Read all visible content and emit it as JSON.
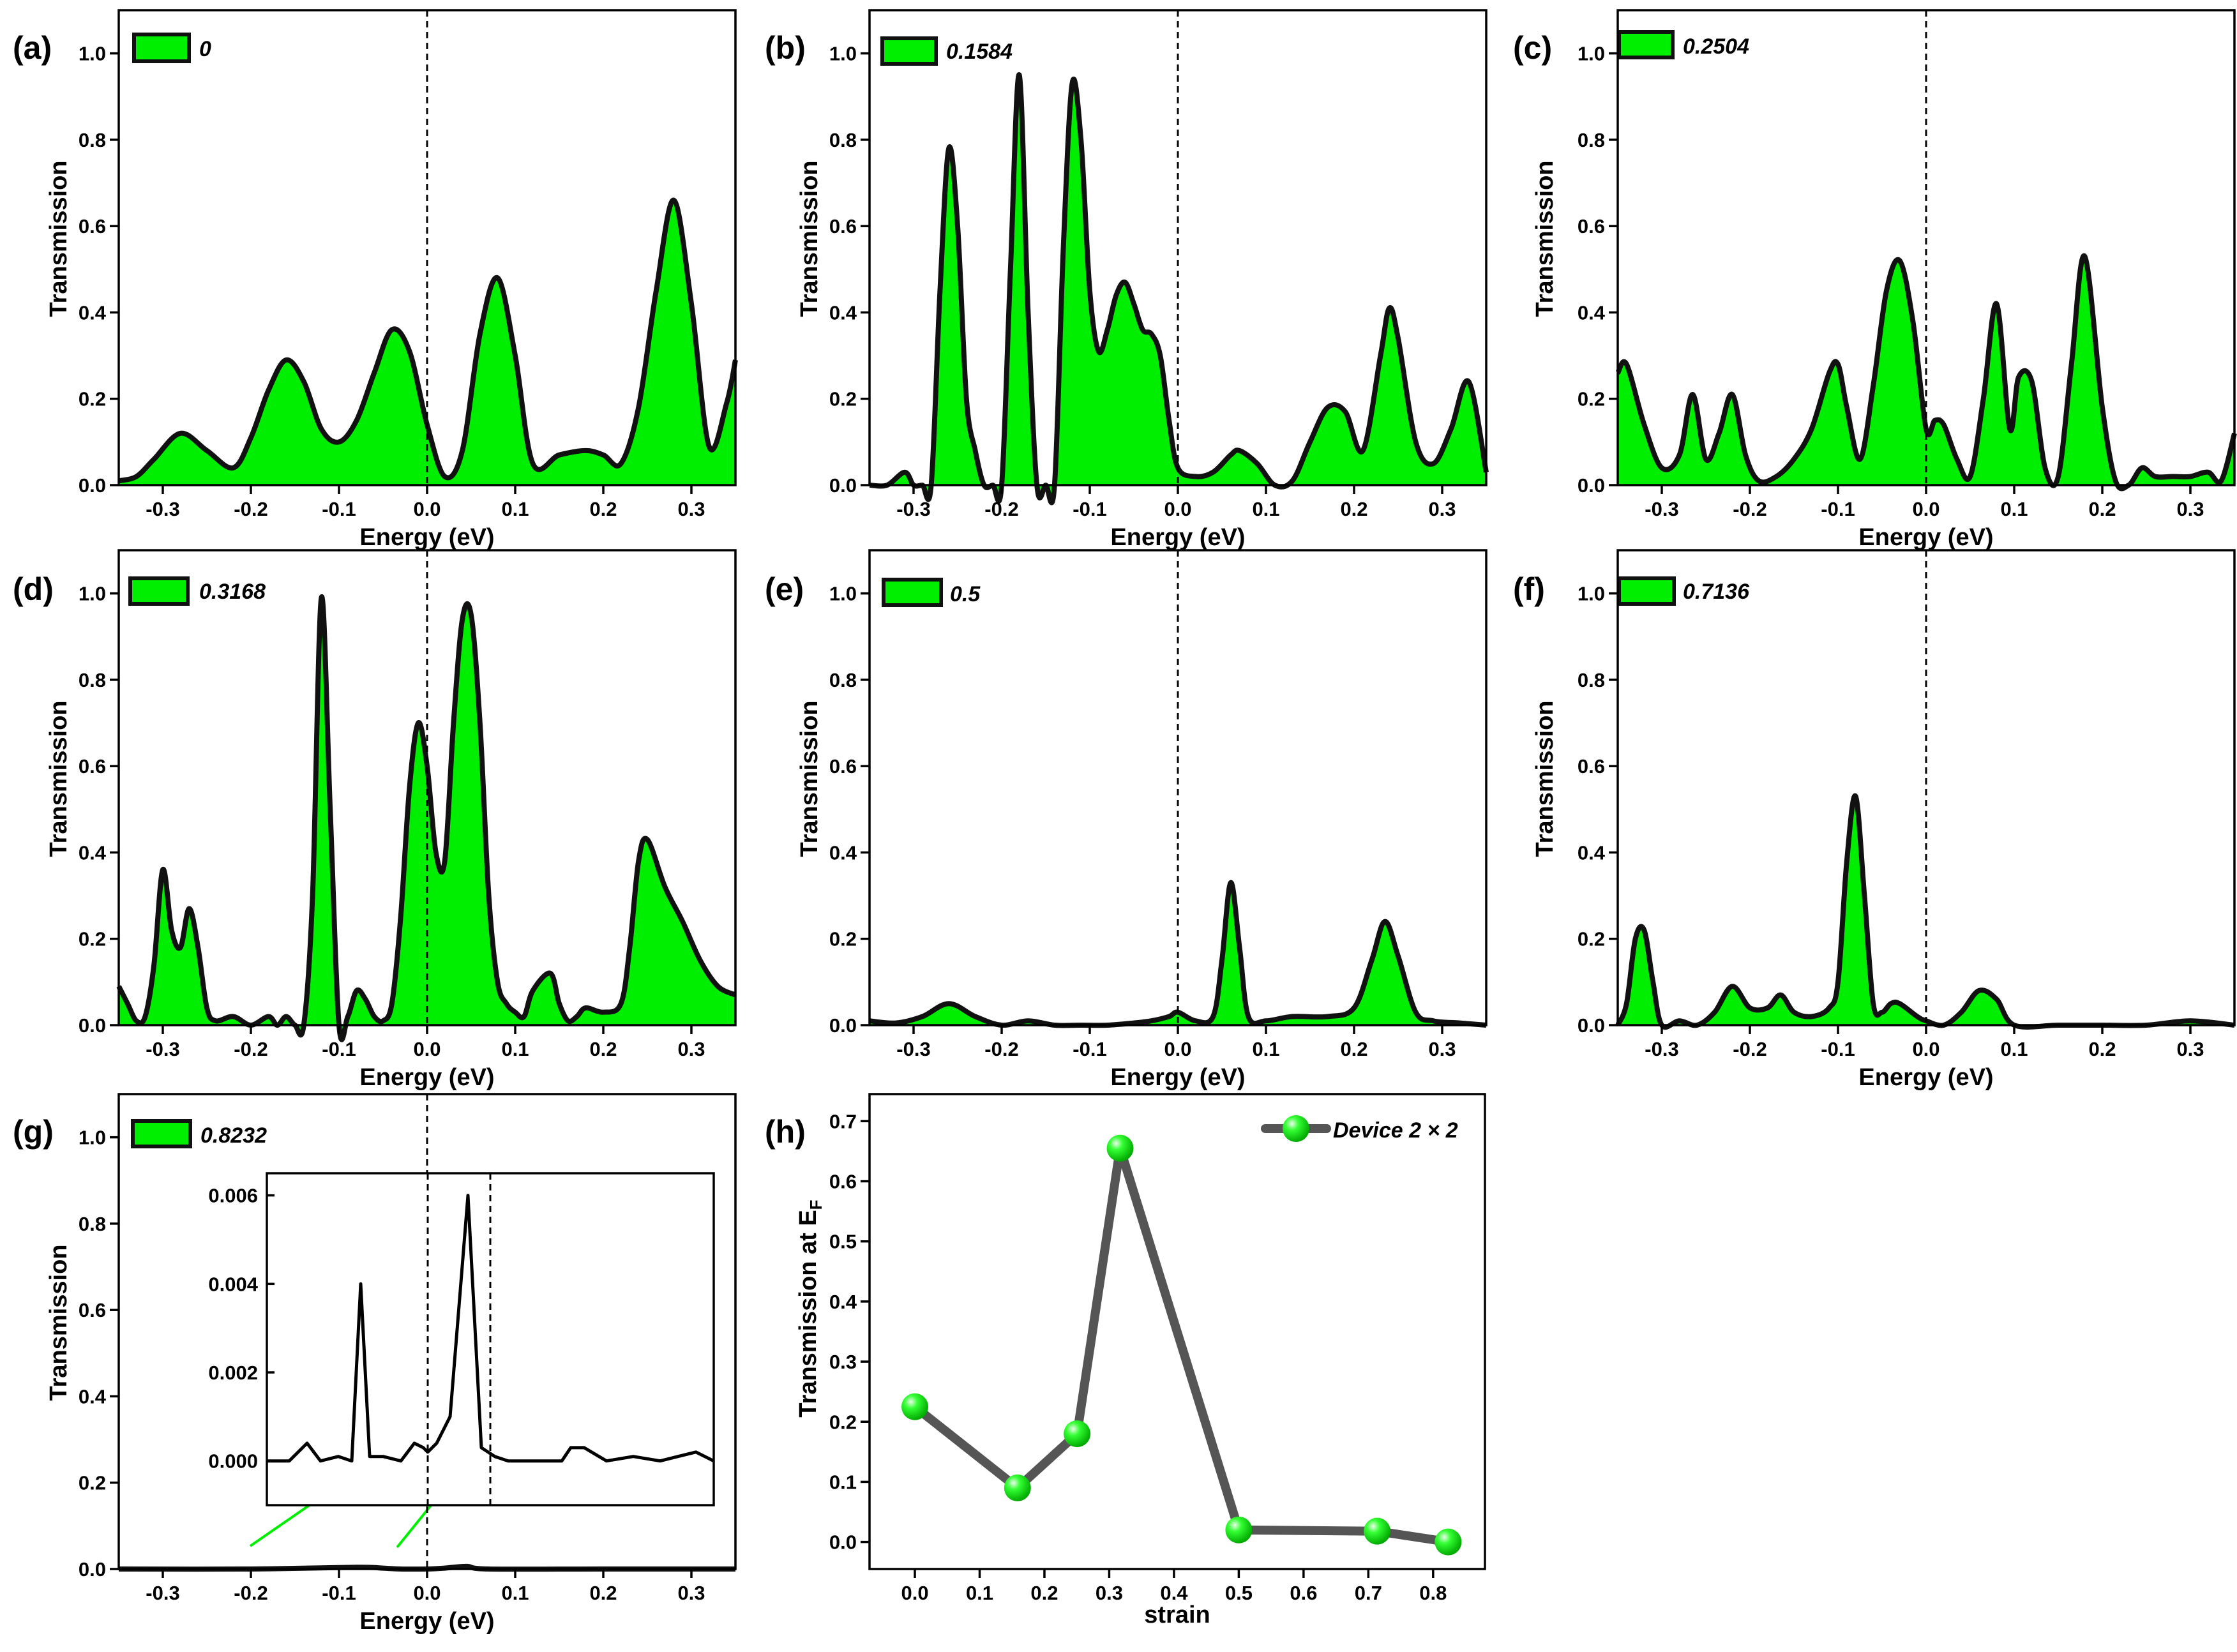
{
  "figure": {
    "panel_labels": [
      "(a)",
      "(b)",
      "(c)",
      "(d)",
      "(e)",
      "(f)",
      "(g)",
      "(h)"
    ]
  },
  "colors": {
    "fill": "#00ee00",
    "curve": "#111111",
    "strain_line": "#555555"
  },
  "chart_data": [
    {
      "id": "a",
      "type": "area",
      "label": "(a)",
      "legend": "0",
      "xlabel": "Energy (eV)",
      "ylabel": "Transmission",
      "xlim": [
        -0.35,
        0.35
      ],
      "ylim": [
        0,
        1.1
      ],
      "xticks": [
        -0.3,
        -0.2,
        -0.1,
        0.0,
        0.1,
        0.2,
        0.3
      ],
      "xtick_labels": [
        "-0.3",
        "-0.2",
        "-0.1",
        "0.0",
        "0.1",
        "0.2",
        "0.3"
      ],
      "yticks": [
        0.0,
        0.2,
        0.4,
        0.6,
        0.8,
        1.0
      ],
      "ytick_labels": [
        "0.0",
        "0.2",
        "0.4",
        "0.6",
        "0.8",
        "1.0"
      ],
      "fermi_level": 0,
      "x": [
        -0.35,
        -0.33,
        -0.31,
        -0.28,
        -0.25,
        -0.22,
        -0.2,
        -0.18,
        -0.16,
        -0.14,
        -0.12,
        -0.1,
        -0.08,
        -0.06,
        -0.04,
        -0.02,
        0.0,
        0.02,
        0.04,
        0.06,
        0.08,
        0.1,
        0.12,
        0.15,
        0.18,
        0.2,
        0.22,
        0.24,
        0.26,
        0.28,
        0.3,
        0.32,
        0.34,
        0.35
      ],
      "y": [
        0.01,
        0.02,
        0.06,
        0.12,
        0.08,
        0.04,
        0.11,
        0.22,
        0.29,
        0.24,
        0.13,
        0.1,
        0.15,
        0.26,
        0.36,
        0.31,
        0.14,
        0.02,
        0.08,
        0.35,
        0.48,
        0.3,
        0.05,
        0.07,
        0.08,
        0.07,
        0.05,
        0.18,
        0.45,
        0.66,
        0.42,
        0.09,
        0.19,
        0.29
      ]
    },
    {
      "id": "b",
      "type": "area",
      "label": "(b)",
      "legend": "0.1584",
      "xlabel": "Energy (eV)",
      "ylabel": "Transmission",
      "xlim": [
        -0.35,
        0.35
      ],
      "ylim": [
        0,
        1.1
      ],
      "xticks": [
        -0.3,
        -0.2,
        -0.1,
        0.0,
        0.1,
        0.2,
        0.3
      ],
      "xtick_labels": [
        "-0.3",
        "-0.2",
        "-0.1",
        "0.0",
        "0.1",
        "0.2",
        "0.3"
      ],
      "yticks": [
        0.0,
        0.2,
        0.4,
        0.6,
        0.8,
        1.0
      ],
      "ytick_labels": [
        "0.0",
        "0.2",
        "0.4",
        "0.6",
        "0.8",
        "1.0"
      ],
      "fermi_level": 0,
      "x": [
        -0.35,
        -0.33,
        -0.31,
        -0.3,
        -0.29,
        -0.28,
        -0.27,
        -0.26,
        -0.25,
        -0.24,
        -0.23,
        -0.22,
        -0.21,
        -0.2,
        -0.19,
        -0.18,
        -0.17,
        -0.16,
        -0.15,
        -0.14,
        -0.13,
        -0.12,
        -0.11,
        -0.1,
        -0.09,
        -0.08,
        -0.07,
        -0.06,
        -0.05,
        -0.04,
        -0.03,
        -0.02,
        -0.01,
        0.0,
        0.02,
        0.04,
        0.06,
        0.07,
        0.09,
        0.11,
        0.13,
        0.15,
        0.17,
        0.19,
        0.21,
        0.23,
        0.24,
        0.25,
        0.27,
        0.29,
        0.31,
        0.33,
        0.35
      ],
      "y": [
        0.0,
        0.0,
        0.03,
        0.0,
        0.0,
        0.0,
        0.45,
        0.78,
        0.6,
        0.2,
        0.08,
        0.0,
        0.0,
        0.0,
        0.5,
        0.95,
        0.4,
        0.0,
        0.0,
        0.0,
        0.55,
        0.93,
        0.8,
        0.45,
        0.31,
        0.36,
        0.44,
        0.47,
        0.42,
        0.36,
        0.35,
        0.3,
        0.15,
        0.04,
        0.02,
        0.03,
        0.07,
        0.08,
        0.05,
        0.0,
        0.01,
        0.1,
        0.18,
        0.17,
        0.08,
        0.3,
        0.41,
        0.34,
        0.1,
        0.05,
        0.13,
        0.24,
        0.03
      ]
    },
    {
      "id": "c",
      "type": "area",
      "label": "(c)",
      "legend": "0.2504",
      "xlabel": "Energy (eV)",
      "ylabel": "Transmission",
      "xlim": [
        -0.35,
        0.35
      ],
      "ylim": [
        0,
        1.1
      ],
      "xticks": [
        -0.3,
        -0.2,
        -0.1,
        0.0,
        0.1,
        0.2,
        0.3
      ],
      "xtick_labels": [
        "-0.3",
        "-0.2",
        "-0.1",
        "0.0",
        "0.1",
        "0.2",
        "0.3"
      ],
      "yticks": [
        0.0,
        0.2,
        0.4,
        0.6,
        0.8,
        1.0
      ],
      "ytick_labels": [
        "0.0",
        "0.2",
        "0.4",
        "0.6",
        "0.8",
        "1.0"
      ],
      "fermi_level": 0,
      "x": [
        -0.35,
        -0.34,
        -0.32,
        -0.3,
        -0.28,
        -0.265,
        -0.25,
        -0.235,
        -0.22,
        -0.205,
        -0.19,
        -0.17,
        -0.15,
        -0.13,
        -0.11,
        -0.1,
        -0.09,
        -0.075,
        -0.06,
        -0.045,
        -0.03,
        -0.015,
        0.0,
        0.01,
        0.02,
        0.035,
        0.05,
        0.065,
        0.08,
        0.095,
        0.105,
        0.12,
        0.135,
        0.15,
        0.165,
        0.18,
        0.2,
        0.215,
        0.23,
        0.245,
        0.26,
        0.28,
        0.3,
        0.32,
        0.335,
        0.35
      ],
      "y": [
        0.26,
        0.28,
        0.14,
        0.04,
        0.07,
        0.21,
        0.06,
        0.12,
        0.21,
        0.07,
        0.01,
        0.02,
        0.06,
        0.13,
        0.26,
        0.28,
        0.18,
        0.06,
        0.23,
        0.45,
        0.52,
        0.38,
        0.13,
        0.15,
        0.14,
        0.06,
        0.02,
        0.2,
        0.42,
        0.13,
        0.25,
        0.24,
        0.04,
        0.02,
        0.28,
        0.53,
        0.18,
        0.01,
        0.0,
        0.04,
        0.02,
        0.02,
        0.02,
        0.03,
        0.01,
        0.12
      ]
    },
    {
      "id": "d",
      "type": "area",
      "label": "(d)",
      "legend": "0.3168",
      "xlabel": "Energy (eV)",
      "ylabel": "Transmission",
      "xlim": [
        -0.35,
        0.35
      ],
      "ylim": [
        0,
        1.1
      ],
      "xticks": [
        -0.3,
        -0.2,
        -0.1,
        0.0,
        0.1,
        0.2,
        0.3
      ],
      "xtick_labels": [
        "-0.3",
        "-0.2",
        "-0.1",
        "0.0",
        "0.1",
        "0.2",
        "0.3"
      ],
      "yticks": [
        0.0,
        0.2,
        0.4,
        0.6,
        0.8,
        1.0
      ],
      "ytick_labels": [
        "0.0",
        "0.2",
        "0.4",
        "0.6",
        "0.8",
        "1.0"
      ],
      "fermi_level": 0,
      "x": [
        -0.35,
        -0.34,
        -0.33,
        -0.32,
        -0.31,
        -0.3,
        -0.29,
        -0.28,
        -0.27,
        -0.26,
        -0.25,
        -0.24,
        -0.22,
        -0.2,
        -0.18,
        -0.17,
        -0.16,
        -0.15,
        -0.14,
        -0.13,
        -0.12,
        -0.11,
        -0.1,
        -0.09,
        -0.08,
        -0.07,
        -0.06,
        -0.05,
        -0.04,
        -0.03,
        -0.02,
        -0.01,
        0.0,
        0.01,
        0.02,
        0.03,
        0.04,
        0.05,
        0.06,
        0.07,
        0.08,
        0.09,
        0.1,
        0.11,
        0.12,
        0.14,
        0.15,
        0.16,
        0.17,
        0.18,
        0.2,
        0.22,
        0.23,
        0.24,
        0.25,
        0.27,
        0.29,
        0.31,
        0.33,
        0.35
      ],
      "y": [
        0.09,
        0.05,
        0.01,
        0.02,
        0.14,
        0.36,
        0.22,
        0.18,
        0.27,
        0.18,
        0.04,
        0.01,
        0.02,
        0.0,
        0.02,
        0.0,
        0.02,
        0.0,
        0.0,
        0.3,
        0.99,
        0.5,
        0.0,
        0.02,
        0.08,
        0.06,
        0.02,
        0.01,
        0.05,
        0.25,
        0.55,
        0.7,
        0.6,
        0.4,
        0.38,
        0.7,
        0.94,
        0.95,
        0.7,
        0.3,
        0.1,
        0.05,
        0.03,
        0.02,
        0.08,
        0.12,
        0.05,
        0.01,
        0.02,
        0.04,
        0.03,
        0.05,
        0.18,
        0.38,
        0.43,
        0.32,
        0.24,
        0.15,
        0.09,
        0.07
      ]
    },
    {
      "id": "e",
      "type": "area",
      "label": "(e)",
      "legend": "0.5",
      "xlabel": "Energy (eV)",
      "ylabel": "Transmission",
      "xlim": [
        -0.35,
        0.35
      ],
      "ylim": [
        0,
        1.1
      ],
      "xticks": [
        -0.3,
        -0.2,
        -0.1,
        0.0,
        0.1,
        0.2,
        0.3
      ],
      "xtick_labels": [
        "-0.3",
        "-0.2",
        "-0.1",
        "0.0",
        "0.1",
        "0.2",
        "0.3"
      ],
      "yticks": [
        0.0,
        0.2,
        0.4,
        0.6,
        0.8,
        1.0
      ],
      "ytick_labels": [
        "0.0",
        "0.2",
        "0.4",
        "0.6",
        "0.8",
        "1.0"
      ],
      "fermi_level": 0,
      "x": [
        -0.35,
        -0.32,
        -0.29,
        -0.26,
        -0.23,
        -0.2,
        -0.17,
        -0.14,
        -0.11,
        -0.08,
        -0.05,
        -0.03,
        -0.01,
        0.0,
        0.02,
        0.04,
        0.05,
        0.06,
        0.07,
        0.08,
        0.1,
        0.13,
        0.17,
        0.2,
        0.22,
        0.235,
        0.25,
        0.27,
        0.29,
        0.32,
        0.35
      ],
      "y": [
        0.01,
        0.005,
        0.02,
        0.05,
        0.02,
        0.0,
        0.01,
        0.0,
        0.0,
        0.0,
        0.005,
        0.01,
        0.02,
        0.03,
        0.01,
        0.02,
        0.15,
        0.33,
        0.18,
        0.02,
        0.01,
        0.02,
        0.02,
        0.04,
        0.15,
        0.24,
        0.16,
        0.03,
        0.01,
        0.005,
        0.0
      ]
    },
    {
      "id": "f",
      "type": "area",
      "label": "(f)",
      "legend": "0.7136",
      "xlabel": "Energy (eV)",
      "ylabel": "Transmission",
      "xlim": [
        -0.35,
        0.35
      ],
      "ylim": [
        0,
        1.1
      ],
      "xticks": [
        -0.3,
        -0.2,
        -0.1,
        0.0,
        0.1,
        0.2,
        0.3
      ],
      "xtick_labels": [
        "-0.3",
        "-0.2",
        "-0.1",
        "0.0",
        "0.1",
        "0.2",
        "0.3"
      ],
      "yticks": [
        0.0,
        0.2,
        0.4,
        0.6,
        0.8,
        1.0
      ],
      "ytick_labels": [
        "0.0",
        "0.2",
        "0.4",
        "0.6",
        "0.8",
        "1.0"
      ],
      "fermi_level": 0,
      "x": [
        -0.35,
        -0.34,
        -0.33,
        -0.32,
        -0.31,
        -0.3,
        -0.28,
        -0.26,
        -0.24,
        -0.22,
        -0.2,
        -0.18,
        -0.165,
        -0.15,
        -0.13,
        -0.11,
        -0.1,
        -0.09,
        -0.08,
        -0.07,
        -0.06,
        -0.05,
        -0.04,
        -0.03,
        -0.01,
        0.0,
        0.02,
        0.04,
        0.06,
        0.08,
        0.1,
        0.15,
        0.2,
        0.25,
        0.3,
        0.35
      ],
      "y": [
        0.0,
        0.05,
        0.2,
        0.22,
        0.1,
        0.0,
        0.01,
        0.0,
        0.03,
        0.09,
        0.04,
        0.04,
        0.07,
        0.03,
        0.02,
        0.04,
        0.1,
        0.38,
        0.53,
        0.3,
        0.05,
        0.03,
        0.05,
        0.05,
        0.02,
        0.01,
        0.0,
        0.03,
        0.08,
        0.06,
        0.0,
        0.0,
        0.0,
        0.0,
        0.01,
        0.0
      ]
    },
    {
      "id": "g",
      "type": "area",
      "label": "(g)",
      "legend": "0.8232",
      "xlabel": "Energy (eV)",
      "ylabel": "Transmission",
      "xlim": [
        -0.35,
        0.35
      ],
      "ylim": [
        0,
        1.1
      ],
      "xticks": [
        -0.3,
        -0.2,
        -0.1,
        0.0,
        0.1,
        0.2,
        0.3
      ],
      "xtick_labels": [
        "-0.3",
        "-0.2",
        "-0.1",
        "0.0",
        "0.1",
        "0.2",
        "0.3"
      ],
      "yticks": [
        0.0,
        0.2,
        0.4,
        0.6,
        0.8,
        1.0
      ],
      "ytick_labels": [
        "0.0",
        "0.2",
        "0.4",
        "0.6",
        "0.8",
        "1.0"
      ],
      "fermi_level": 0,
      "x": [
        -0.35,
        -0.2,
        -0.08,
        -0.05,
        -0.03,
        0.0,
        0.02,
        0.045,
        0.07,
        0.2,
        0.35
      ],
      "y": [
        0.0,
        0.0,
        0.004,
        0.002,
        0.0,
        0.0,
        0.002,
        0.006,
        0.0,
        0.0,
        0.0
      ],
      "inset": {
        "type": "line",
        "xlim": [
          -0.18,
          0.32
        ],
        "ylim": [
          -0.001,
          0.0065
        ],
        "yticks": [
          0.0,
          0.002,
          0.004,
          0.006
        ],
        "ytick_labels": [
          "0.000",
          "0.002",
          "0.004",
          "0.006"
        ],
        "vlines": [
          0.0,
          0.07
        ],
        "x": [
          -0.18,
          -0.155,
          -0.135,
          -0.12,
          -0.1,
          -0.085,
          -0.075,
          -0.065,
          -0.05,
          -0.03,
          -0.015,
          -0.005,
          0.0,
          0.01,
          0.025,
          0.045,
          0.06,
          0.075,
          0.09,
          0.12,
          0.15,
          0.16,
          0.175,
          0.2,
          0.23,
          0.26,
          0.28,
          0.3,
          0.32
        ],
        "y": [
          0.0,
          0.0,
          0.0004,
          0.0,
          0.0001,
          0.0,
          0.004,
          0.0001,
          0.0001,
          0.0,
          0.0004,
          0.0003,
          0.0002,
          0.0004,
          0.001,
          0.006,
          0.0003,
          0.0001,
          0.0,
          0.0,
          0.0,
          0.0003,
          0.0003,
          0.0,
          0.0001,
          0.0,
          0.0001,
          0.0002,
          0.0
        ]
      }
    },
    {
      "id": "h",
      "type": "line",
      "label": "(h)",
      "xlabel": "strain",
      "ylabel": "Transmission at E",
      "ylabel_sub": "F",
      "legend": "Device 2 × 2",
      "xlim": [
        -0.07,
        0.88
      ],
      "ylim": [
        -0.045,
        0.745
      ],
      "xticks": [
        0.0,
        0.1,
        0.2,
        0.3,
        0.4,
        0.5,
        0.6,
        0.7,
        0.8
      ],
      "xtick_labels": [
        "0.0",
        "0.1",
        "0.2",
        "0.3",
        "0.4",
        "0.5",
        "0.6",
        "0.7",
        "0.8"
      ],
      "yticks": [
        0.0,
        0.1,
        0.2,
        0.3,
        0.4,
        0.5,
        0.6,
        0.7
      ],
      "ytick_labels": [
        "0.0",
        "0.1",
        "0.2",
        "0.3",
        "0.4",
        "0.5",
        "0.6",
        "0.7"
      ],
      "series": [
        {
          "name": "Device 2 × 2",
          "x": [
            0.0,
            0.1584,
            0.2504,
            0.3168,
            0.5,
            0.7136,
            0.8232
          ],
          "y": [
            0.225,
            0.09,
            0.18,
            0.655,
            0.02,
            0.018,
            0.0
          ]
        }
      ]
    }
  ]
}
